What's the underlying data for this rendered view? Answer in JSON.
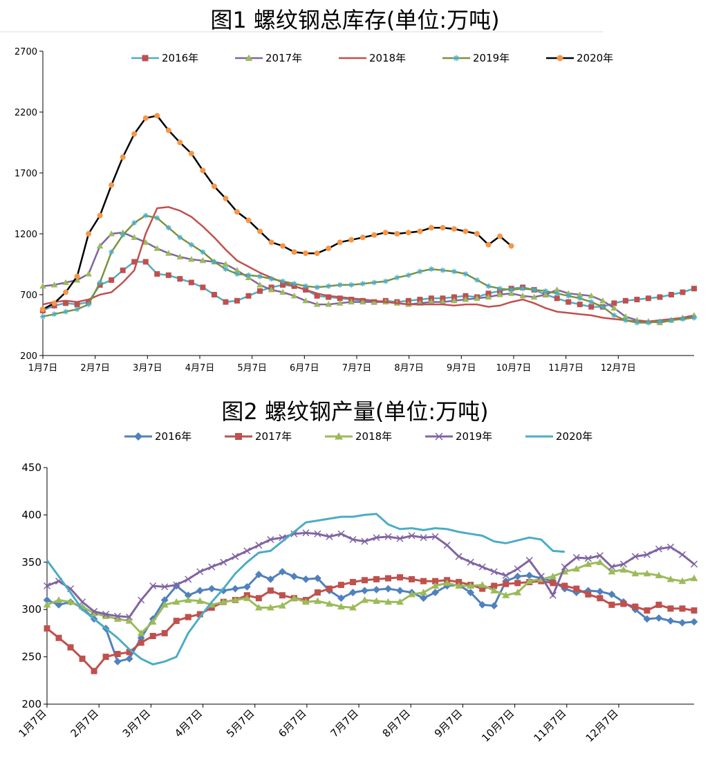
{
  "chart_data": [
    {
      "type": "line",
      "title": "图1 螺纹钢总库存(单位:万吨)",
      "xlabel": "",
      "ylabel": "",
      "ylim": [
        200,
        2700
      ],
      "yticks": [
        200,
        700,
        1200,
        1700,
        2200,
        2700
      ],
      "xticks": [
        "1月7日",
        "2月7日",
        "3月7日",
        "4月7日",
        "5月7日",
        "6月7日",
        "7月7日",
        "8月7日",
        "9月7日",
        "10月7日",
        "11月7日",
        "12月7日"
      ],
      "legend": "top",
      "grid": false,
      "series": [
        {
          "name": "2016年",
          "color": "#4bacc6",
          "marker": "square",
          "marker_color": "#c0504d",
          "values": [
            570,
            610,
            630,
            620,
            640,
            780,
            820,
            900,
            970,
            970,
            870,
            860,
            830,
            800,
            760,
            700,
            640,
            650,
            690,
            730,
            760,
            780,
            770,
            740,
            690,
            680,
            670,
            660,
            650,
            640,
            650,
            640,
            650,
            660,
            670,
            670,
            680,
            690,
            680,
            710,
            730,
            750,
            760,
            740,
            700,
            670,
            640,
            620,
            600,
            600,
            630,
            650,
            660,
            670,
            680,
            700,
            720,
            750
          ]
        },
        {
          "name": "2017年",
          "color": "#8064a2",
          "marker": "triangle",
          "marker_color": "#9bbb59",
          "values": [
            770,
            780,
            800,
            820,
            870,
            1100,
            1200,
            1210,
            1170,
            1130,
            1080,
            1040,
            1010,
            990,
            980,
            970,
            950,
            900,
            840,
            780,
            740,
            720,
            690,
            650,
            620,
            620,
            630,
            640,
            640,
            640,
            640,
            630,
            620,
            630,
            640,
            640,
            650,
            660,
            670,
            680,
            700,
            710,
            690,
            680,
            700,
            740,
            710,
            700,
            690,
            650,
            590,
            520,
            490,
            480,
            470,
            490,
            510,
            530
          ]
        },
        {
          "name": "2018年",
          "color": "#c0504d",
          "marker": "none",
          "values": [
            620,
            640,
            650,
            640,
            660,
            700,
            720,
            800,
            900,
            1200,
            1410,
            1420,
            1390,
            1340,
            1260,
            1170,
            1070,
            980,
            930,
            880,
            840,
            800,
            770,
            740,
            710,
            690,
            680,
            670,
            660,
            650,
            640,
            630,
            620,
            620,
            620,
            620,
            610,
            620,
            620,
            600,
            610,
            640,
            660,
            630,
            590,
            560,
            550,
            540,
            530,
            510,
            500,
            490,
            480,
            480,
            490,
            500,
            510,
            520
          ]
        },
        {
          "name": "2019年",
          "color": "#77933c",
          "marker": "star",
          "marker_color": "#4bacc6",
          "values": [
            520,
            540,
            560,
            580,
            620,
            800,
            1050,
            1190,
            1290,
            1350,
            1330,
            1250,
            1170,
            1110,
            1050,
            970,
            910,
            870,
            860,
            850,
            830,
            810,
            790,
            770,
            760,
            770,
            780,
            780,
            790,
            800,
            810,
            840,
            860,
            890,
            910,
            900,
            890,
            870,
            820,
            770,
            750,
            740,
            750,
            740,
            730,
            710,
            690,
            670,
            640,
            600,
            530,
            490,
            470,
            470,
            480,
            490,
            500,
            510
          ]
        },
        {
          "name": "2020年",
          "color": "#000000",
          "marker": "circle",
          "marker_color": "#f79646",
          "values": [
            580,
            630,
            720,
            850,
            1200,
            1350,
            1600,
            1830,
            2020,
            2150,
            2170,
            2050,
            1950,
            1860,
            1720,
            1590,
            1490,
            1380,
            1310,
            1220,
            1130,
            1100,
            1050,
            1040,
            1040,
            1080,
            1130,
            1150,
            1170,
            1190,
            1210,
            1200,
            1210,
            1220,
            1250,
            1250,
            1240,
            1220,
            1200,
            1110,
            1180,
            1100
          ]
        }
      ]
    },
    {
      "type": "line",
      "title": "图2 螺纹钢产量(单位:万吨)",
      "xlabel": "",
      "ylabel": "",
      "ylim": [
        200,
        450
      ],
      "yticks": [
        200,
        250,
        300,
        350,
        400,
        450
      ],
      "xticks": [
        "1月7日",
        "2月7日",
        "3月7日",
        "4月7日",
        "5月7日",
        "6月7日",
        "7月7日",
        "8月7日",
        "9月7日",
        "10月7日",
        "11月7日",
        "12月7日"
      ],
      "legend": "top",
      "grid": false,
      "series": [
        {
          "name": "2016年",
          "color": "#4f81bd",
          "marker": "diamond",
          "values": [
            310,
            305,
            308,
            302,
            290,
            280,
            245,
            248,
            270,
            290,
            310,
            325,
            315,
            320,
            322,
            320,
            322,
            324,
            337,
            332,
            340,
            335,
            332,
            333,
            320,
            312,
            318,
            320,
            321,
            322,
            320,
            318,
            312,
            318,
            325,
            326,
            318,
            305,
            304,
            330,
            335,
            336,
            333,
            330,
            322,
            318,
            320,
            319,
            316,
            308,
            300,
            290,
            291,
            288,
            286,
            287
          ]
        },
        {
          "name": "2017年",
          "color": "#c0504d",
          "marker": "square",
          "values": [
            280,
            270,
            260,
            248,
            235,
            250,
            253,
            255,
            265,
            272,
            275,
            288,
            292,
            295,
            302,
            308,
            310,
            315,
            312,
            320,
            315,
            312,
            310,
            318,
            322,
            326,
            329,
            331,
            332,
            333,
            334,
            332,
            330,
            330,
            331,
            329,
            326,
            322,
            325,
            327,
            328,
            329,
            330,
            328,
            325,
            322,
            316,
            312,
            305,
            306,
            303,
            299,
            305,
            301,
            301,
            299
          ]
        },
        {
          "name": "2018年",
          "color": "#9bbb59",
          "marker": "triangle",
          "values": [
            305,
            310,
            308,
            303,
            296,
            293,
            290,
            288,
            275,
            287,
            305,
            308,
            310,
            309,
            305,
            308,
            310,
            312,
            302,
            302,
            304,
            312,
            308,
            309,
            306,
            303,
            302,
            310,
            309,
            308,
            308,
            316,
            318,
            325,
            328,
            325,
            325,
            326,
            320,
            315,
            318,
            330,
            332,
            335,
            340,
            343,
            348,
            350,
            340,
            342,
            338,
            338,
            336,
            332,
            330,
            333
          ]
        },
        {
          "name": "2019年",
          "color": "#8064a2",
          "marker": "x",
          "values": [
            325,
            330,
            322,
            308,
            298,
            295,
            293,
            292,
            310,
            325,
            324,
            326,
            332,
            340,
            345,
            350,
            356,
            362,
            368,
            374,
            376,
            380,
            381,
            380,
            377,
            380,
            374,
            372,
            376,
            377,
            375,
            378,
            376,
            377,
            368,
            356,
            350,
            345,
            340,
            336,
            343,
            352,
            335,
            315,
            345,
            355,
            354,
            357,
            345,
            348,
            356,
            358,
            364,
            366,
            358,
            348
          ]
        },
        {
          "name": "2020年",
          "color": "#4bacc6",
          "marker": "none",
          "values": [
            352,
            335,
            318,
            300,
            290,
            280,
            270,
            258,
            248,
            242,
            245,
            250,
            275,
            292,
            308,
            322,
            338,
            350,
            360,
            362,
            372,
            382,
            392,
            394,
            396,
            398,
            398,
            400,
            401,
            390,
            385,
            386,
            384,
            386,
            385,
            382,
            380,
            378,
            372,
            370,
            373,
            376,
            374,
            362,
            361
          ]
        }
      ]
    }
  ]
}
